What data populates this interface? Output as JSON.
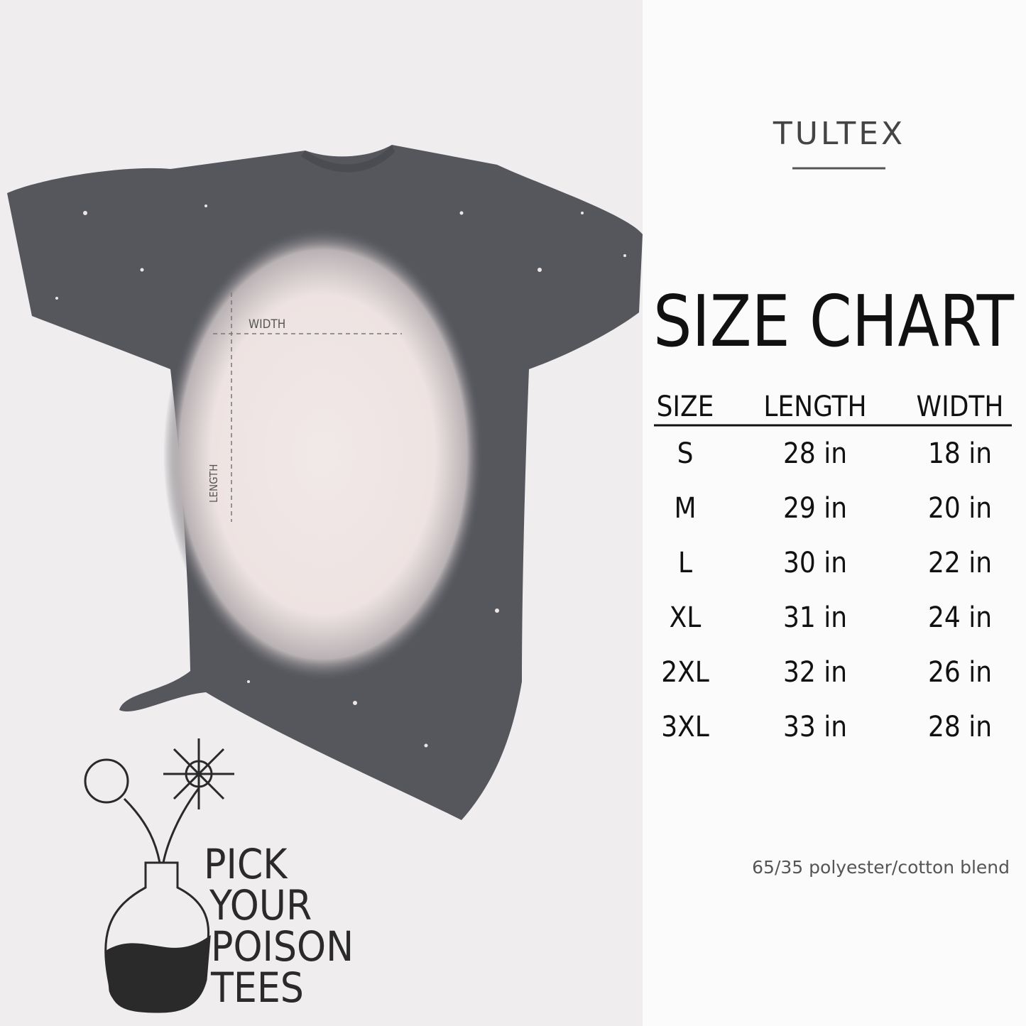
{
  "brand": "TULTEX",
  "title": "SIZE CHART",
  "table": {
    "header": [
      "SIZE",
      "LENGTH",
      "WIDTH"
    ],
    "rows": [
      [
        "S",
        "28 in",
        "18 in"
      ],
      [
        "M",
        "29 in",
        "20 in"
      ],
      [
        "L",
        "30 in",
        "22 in"
      ],
      [
        "XL",
        "31 in",
        "24 in"
      ],
      [
        "2XL",
        "32 in",
        "26 in"
      ],
      [
        "3XL",
        "33 in",
        "28 in"
      ]
    ]
  },
  "footnote": "65/35 polyester/cotton blend",
  "diagram": {
    "width_label": "WIDTH",
    "length_label": "LENGTH"
  },
  "logo": {
    "lines": [
      "PICK",
      "YOUR",
      "POISON",
      "TEES"
    ]
  }
}
